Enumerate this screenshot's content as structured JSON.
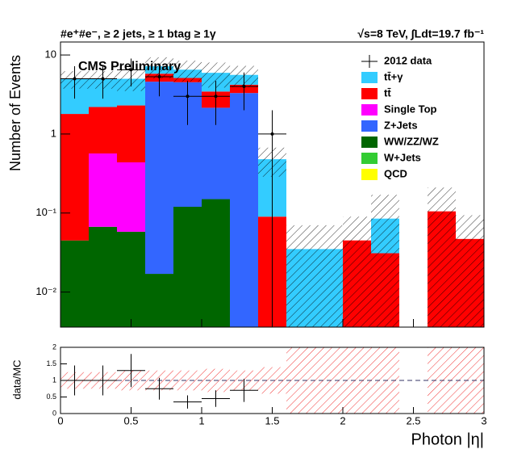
{
  "chart_data": {
    "type": "stacked_histogram",
    "title": "#e⁺#e⁻, ≥ 2 jets, ≥ 1 btag ≥ 1γ",
    "title_right": "√s=8 TeV, ∫Ldt=19.7 fb⁻¹",
    "annotation": "CMS Preliminary",
    "ylabel": "Number of Events",
    "xlabel": "Photon |η|",
    "log_y": true,
    "bins": [
      0,
      0.2,
      0.4,
      0.6,
      0.8,
      1.0,
      1.2,
      1.4,
      1.6,
      1.8,
      2.0,
      2.2,
      2.4,
      2.6,
      2.8,
      3.0
    ],
    "xlim": [
      0,
      3
    ],
    "xticks": [
      0,
      0.5,
      1,
      1.5,
      2,
      2.5,
      3
    ],
    "ylim": [
      0.0036,
      14.6
    ],
    "yticks": [
      {
        "value": 0.01,
        "label": "10⁻²"
      },
      {
        "value": 0.1,
        "label": "10⁻¹"
      },
      1,
      10
    ],
    "series": [
      {
        "name": "tt̄+γ",
        "color": "#33ccff",
        "values": [
          3.2,
          2.8,
          2.7,
          1.4,
          1.4,
          2.5,
          1.4,
          0.39,
          0.035,
          0.035,
          0,
          0.054,
          0,
          0,
          0
        ]
      },
      {
        "name": "tt̄",
        "color": "#ff0000",
        "values": [
          1.75,
          1.63,
          1.86,
          1.2,
          0.6,
          1.3,
          0.9,
          0.09,
          0,
          0,
          0.045,
          0.031,
          0,
          0.105,
          0.047
        ]
      },
      {
        "name": "Single Top",
        "color": "#ff00ff",
        "values": [
          0,
          0.5,
          0.38,
          0,
          0,
          0,
          0,
          0,
          0,
          0,
          0,
          0,
          0,
          0,
          0
        ]
      },
      {
        "name": "Z+Jets",
        "color": "#3366ff",
        "values": [
          0,
          0,
          0,
          4.58,
          4.4,
          2.0,
          3.3,
          0,
          0,
          0,
          0,
          0,
          0,
          0,
          0
        ]
      },
      {
        "name": "WW/ZZ/WZ",
        "color": "#006600",
        "values": [
          0.045,
          0.067,
          0.058,
          0.017,
          0.12,
          0.15,
          0,
          0,
          0,
          0,
          0,
          0,
          0,
          0,
          0
        ]
      },
      {
        "name": "W+Jets",
        "color": "#33cc33",
        "values": [
          0,
          0,
          0,
          0,
          0,
          0,
          0,
          0,
          0,
          0,
          0,
          0,
          0,
          0,
          0
        ]
      },
      {
        "name": "QCD",
        "color": "#ffff00",
        "values": [
          0,
          0,
          0,
          0,
          0,
          0,
          0,
          0,
          0,
          0,
          0,
          0,
          0,
          0,
          0
        ]
      }
    ],
    "mc_rel_uncertainty": [
      0.25,
      0.25,
      0.3,
      0.3,
      0.3,
      0.35,
      0.3,
      0.4,
      1,
      1,
      1,
      1,
      0,
      1,
      1
    ],
    "data": {
      "name": "2012 data",
      "values": [
        5,
        5,
        6.5,
        5.3,
        3,
        3,
        4,
        1,
        0,
        0,
        0,
        0,
        0,
        0,
        0
      ],
      "errors": [
        2.2,
        2.2,
        2.5,
        2.3,
        1.7,
        1.7,
        2,
        1,
        0,
        0,
        0,
        0,
        0,
        0,
        0
      ]
    },
    "ratio": {
      "ylabel": "data/MC",
      "ylim": [
        0,
        2
      ],
      "yticks": [
        0,
        0.5,
        1,
        1.5,
        2
      ],
      "values": [
        1.0,
        1.0,
        1.3,
        0.75,
        0.35,
        0.45,
        0.7,
        0,
        0,
        0,
        0,
        0,
        0,
        0,
        0
      ],
      "errors": [
        0.45,
        0.45,
        0.5,
        0.33,
        0.2,
        0.25,
        0.35,
        0,
        0,
        0,
        0,
        0,
        0,
        0,
        0
      ]
    }
  }
}
